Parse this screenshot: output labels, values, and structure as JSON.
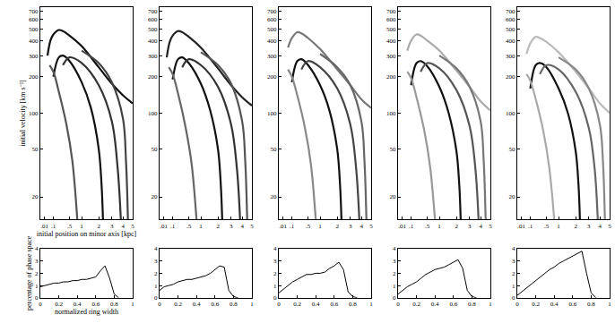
{
  "chart_data": [
    {
      "type": "line",
      "log": "y",
      "xlabel": "initial position on minor axis [kpc]",
      "ylabel": "initial velocity [km s⁻¹]",
      "xlim": [
        0,
        5
      ],
      "xticks": [
        {
          "value": 0.01,
          "label": ".01"
        },
        {
          "value": 0.1,
          "label": ".1"
        },
        {
          "value": 0.5,
          "label": ".5"
        },
        1,
        2,
        3,
        4,
        5
      ],
      "ylim": [
        13,
        760
      ],
      "yticks": [
        20,
        50,
        100,
        200,
        300,
        400,
        500,
        600,
        700
      ],
      "series": [
        {
          "color": "#111111",
          "x": [
            0.03,
            0.06,
            0.1,
            0.2,
            0.3,
            0.5,
            1,
            2,
            3,
            4,
            5
          ],
          "values": [
            300,
            400,
            450,
            490,
            480,
            440,
            360,
            240,
            175,
            140,
            120
          ]
        },
        {
          "color": "#111111",
          "x": [
            0.1,
            0.2,
            0.3,
            0.5,
            1,
            1.5,
            2,
            2.2,
            2.3
          ],
          "values": [
            200,
            290,
            300,
            270,
            180,
            110,
            50,
            25,
            13
          ]
        },
        {
          "color": "#333333",
          "x": [
            0.3,
            0.5,
            1,
            2,
            3,
            3.5,
            3.8
          ],
          "values": [
            250,
            290,
            260,
            170,
            85,
            35,
            13
          ]
        },
        {
          "color": "#555555",
          "x": [
            0.05,
            0.1,
            0.2,
            0.4,
            0.6,
            0.8
          ],
          "values": [
            250,
            220,
            150,
            80,
            40,
            13
          ]
        },
        {
          "color": "#444444",
          "x": [
            1,
            2,
            3,
            4,
            4.3,
            4.5
          ],
          "values": [
            330,
            260,
            180,
            90,
            40,
            13
          ]
        }
      ]
    },
    {
      "type": "line",
      "log": "y",
      "xlim": [
        0,
        5
      ],
      "xticks": [
        {
          "value": 0.01,
          "label": ".01"
        },
        {
          "value": 0.1,
          "label": ".1"
        },
        {
          "value": 0.5,
          "label": ".5"
        },
        1,
        2,
        3,
        4,
        5
      ],
      "ylim": [
        13,
        760
      ],
      "yticks": [
        20,
        50,
        100,
        200,
        300,
        400,
        500,
        600,
        700
      ],
      "series": [
        {
          "color": "#222222",
          "x": [
            0.03,
            0.06,
            0.1,
            0.2,
            0.3,
            0.5,
            1,
            2,
            3,
            4,
            5
          ],
          "values": [
            290,
            390,
            440,
            480,
            470,
            430,
            350,
            235,
            170,
            135,
            115
          ]
        },
        {
          "color": "#111111",
          "x": [
            0.1,
            0.2,
            0.3,
            0.5,
            1,
            1.5,
            2,
            2.2,
            2.3
          ],
          "values": [
            190,
            280,
            290,
            260,
            175,
            105,
            50,
            25,
            13
          ]
        },
        {
          "color": "#333333",
          "x": [
            0.3,
            0.5,
            1,
            2,
            3,
            3.5,
            3.8
          ],
          "values": [
            240,
            280,
            250,
            165,
            80,
            35,
            13
          ]
        },
        {
          "color": "#666666",
          "x": [
            0.05,
            0.1,
            0.2,
            0.4,
            0.6,
            0.8
          ],
          "values": [
            240,
            210,
            145,
            75,
            38,
            13
          ]
        },
        {
          "color": "#555555",
          "x": [
            1,
            2,
            3,
            4,
            4.3,
            4.5
          ],
          "values": [
            320,
            250,
            175,
            85,
            40,
            13
          ]
        }
      ]
    },
    {
      "type": "line",
      "log": "y",
      "xlim": [
        0,
        5
      ],
      "xticks": [
        {
          "value": 0.01,
          "label": ".01"
        },
        {
          "value": 0.1,
          "label": ".1"
        },
        {
          "value": 0.5,
          "label": ".5"
        },
        1,
        2,
        3,
        4,
        5
      ],
      "ylim": [
        13,
        760
      ],
      "yticks": [
        20,
        50,
        100,
        200,
        300,
        400,
        500,
        600,
        700
      ],
      "series": [
        {
          "color": "#777777",
          "x": [
            0.05,
            0.1,
            0.2,
            0.3,
            0.5,
            1,
            2,
            3,
            4,
            5
          ],
          "values": [
            350,
            420,
            470,
            460,
            420,
            340,
            230,
            170,
            130,
            110
          ]
        },
        {
          "color": "#111111",
          "x": [
            0.1,
            0.2,
            0.3,
            0.5,
            1,
            1.5,
            2,
            2.2,
            2.3
          ],
          "values": [
            180,
            270,
            280,
            250,
            170,
            105,
            50,
            25,
            13
          ]
        },
        {
          "color": "#444444",
          "x": [
            0.3,
            0.5,
            1,
            2,
            3,
            3.5,
            3.8
          ],
          "values": [
            230,
            270,
            240,
            160,
            80,
            35,
            13
          ]
        },
        {
          "color": "#888888",
          "x": [
            0.05,
            0.1,
            0.2,
            0.4,
            0.6,
            0.8
          ],
          "values": [
            230,
            200,
            140,
            75,
            38,
            13
          ]
        },
        {
          "color": "#666666",
          "x": [
            1,
            2,
            3,
            4,
            4.3,
            4.5
          ],
          "values": [
            310,
            240,
            170,
            85,
            40,
            13
          ]
        }
      ]
    },
    {
      "type": "line",
      "log": "y",
      "xlim": [
        0,
        5
      ],
      "xticks": [
        {
          "value": 0.01,
          "label": ".01"
        },
        {
          "value": 0.1,
          "label": ".1"
        },
        {
          "value": 0.5,
          "label": ".5"
        },
        1,
        2,
        3,
        4,
        5
      ],
      "ylim": [
        13,
        760
      ],
      "yticks": [
        20,
        50,
        100,
        200,
        300,
        400,
        500,
        600,
        700
      ],
      "series": [
        {
          "color": "#aaaaaa",
          "x": [
            0.05,
            0.1,
            0.2,
            0.3,
            0.5,
            1,
            2,
            3,
            4,
            5
          ],
          "values": [
            330,
            400,
            450,
            440,
            400,
            330,
            225,
            165,
            125,
            105
          ]
        },
        {
          "color": "#111111",
          "x": [
            0.1,
            0.2,
            0.3,
            0.5,
            1,
            1.5,
            2,
            2.2,
            2.3
          ],
          "values": [
            170,
            260,
            270,
            245,
            165,
            100,
            48,
            25,
            13
          ]
        },
        {
          "color": "#555555",
          "x": [
            0.3,
            0.5,
            1,
            2,
            3,
            3.5,
            3.8
          ],
          "values": [
            220,
            260,
            235,
            155,
            78,
            35,
            13
          ]
        },
        {
          "color": "#999999",
          "x": [
            0.05,
            0.1,
            0.2,
            0.4,
            0.6,
            0.8
          ],
          "values": [
            220,
            195,
            135,
            72,
            36,
            13
          ]
        },
        {
          "color": "#777777",
          "x": [
            1,
            2,
            3,
            4,
            4.3,
            4.5
          ],
          "values": [
            300,
            235,
            165,
            85,
            40,
            13
          ]
        }
      ]
    },
    {
      "type": "line",
      "log": "y",
      "xlim": [
        0,
        5
      ],
      "xticks": [
        {
          "value": 0.01,
          "label": ".01"
        },
        {
          "value": 0.1,
          "label": ".1"
        },
        {
          "value": 0.5,
          "label": ".5"
        },
        1,
        2,
        3,
        4,
        5
      ],
      "ylim": [
        13,
        760
      ],
      "yticks": [
        20,
        50,
        100,
        200,
        300,
        400,
        500,
        600,
        700
      ],
      "series": [
        {
          "color": "#bbbbbb",
          "x": [
            0.05,
            0.1,
            0.2,
            0.3,
            0.5,
            1,
            2,
            3,
            4,
            5
          ],
          "values": [
            310,
            380,
            430,
            420,
            390,
            320,
            220,
            160,
            120,
            100
          ]
        },
        {
          "color": "#111111",
          "x": [
            0.1,
            0.2,
            0.3,
            0.5,
            1,
            1.5,
            2,
            2.2,
            2.3
          ],
          "values": [
            160,
            250,
            260,
            240,
            160,
            100,
            48,
            25,
            13
          ]
        },
        {
          "color": "#666666",
          "x": [
            0.3,
            0.5,
            1,
            2,
            3,
            3.5,
            3.8
          ],
          "values": [
            210,
            250,
            230,
            150,
            75,
            35,
            13
          ]
        },
        {
          "color": "#aaaaaa",
          "x": [
            0.05,
            0.1,
            0.2,
            0.4,
            0.6,
            0.8
          ],
          "values": [
            210,
            185,
            130,
            70,
            35,
            13
          ]
        },
        {
          "color": "#888888",
          "x": [
            1,
            2,
            3,
            4,
            4.3,
            4.5
          ],
          "values": [
            290,
            230,
            160,
            80,
            40,
            13
          ]
        }
      ]
    },
    {
      "type": "line",
      "xlabel": "normalized ring width",
      "ylabel": "percentage of phase space",
      "xlim": [
        0,
        1
      ],
      "xticks": [
        0,
        0.2,
        0.4,
        0.6,
        0.8,
        1
      ],
      "ylim": [
        0,
        4
      ],
      "yticks": [
        0,
        1,
        2,
        3,
        4
      ],
      "color": "#000000",
      "x": [
        0,
        0.05,
        0.1,
        0.15,
        0.2,
        0.25,
        0.3,
        0.35,
        0.4,
        0.45,
        0.5,
        0.55,
        0.6,
        0.65,
        0.7,
        0.75,
        0.8,
        0.85
      ],
      "values": [
        0.9,
        1.0,
        1.1,
        1.2,
        1.2,
        1.3,
        1.3,
        1.4,
        1.4,
        1.5,
        1.5,
        1.6,
        1.7,
        2.2,
        2.6,
        1.6,
        0.3,
        0
      ]
    },
    {
      "type": "line",
      "xlim": [
        0,
        1
      ],
      "xticks": [
        0,
        0.2,
        0.4,
        0.6,
        0.8,
        1
      ],
      "ylim": [
        0,
        4
      ],
      "yticks": [
        0,
        1,
        2,
        3,
        4
      ],
      "color": "#000000",
      "x": [
        0,
        0.05,
        0.1,
        0.15,
        0.2,
        0.25,
        0.3,
        0.35,
        0.4,
        0.45,
        0.5,
        0.55,
        0.6,
        0.65,
        0.7,
        0.75,
        0.8,
        0.85
      ],
      "values": [
        0.6,
        0.9,
        1.0,
        1.1,
        1.3,
        1.4,
        1.5,
        1.5,
        1.6,
        1.7,
        1.8,
        2.0,
        2.3,
        2.6,
        2.5,
        0.6,
        0.1,
        0
      ]
    },
    {
      "type": "line",
      "xlim": [
        0,
        1
      ],
      "xticks": [
        0,
        0.2,
        0.4,
        0.6,
        0.8,
        1
      ],
      "ylim": [
        0,
        4
      ],
      "yticks": [
        0,
        1,
        2,
        3,
        4
      ],
      "color": "#000000",
      "x": [
        0,
        0.05,
        0.1,
        0.15,
        0.2,
        0.25,
        0.3,
        0.35,
        0.4,
        0.45,
        0.5,
        0.55,
        0.6,
        0.65,
        0.7,
        0.75,
        0.8,
        0.85
      ],
      "values": [
        0.4,
        0.7,
        1.0,
        1.3,
        1.5,
        1.7,
        1.9,
        1.9,
        2.0,
        2.0,
        2.1,
        2.4,
        2.6,
        2.9,
        2.3,
        0.5,
        0.1,
        0
      ]
    },
    {
      "type": "line",
      "xlim": [
        0,
        1
      ],
      "xticks": [
        0,
        0.2,
        0.4,
        0.6,
        0.8,
        1
      ],
      "ylim": [
        0,
        4
      ],
      "yticks": [
        0,
        1,
        2,
        3,
        4
      ],
      "color": "#000000",
      "x": [
        0,
        0.05,
        0.1,
        0.15,
        0.2,
        0.25,
        0.3,
        0.35,
        0.4,
        0.45,
        0.5,
        0.55,
        0.6,
        0.65,
        0.7,
        0.75,
        0.8,
        0.85
      ],
      "values": [
        0.3,
        0.6,
        0.9,
        1.1,
        1.3,
        1.6,
        1.9,
        2.1,
        2.3,
        2.4,
        2.5,
        2.7,
        2.9,
        3.1,
        2.4,
        0.6,
        0.1,
        0
      ]
    },
    {
      "type": "line",
      "xlim": [
        0,
        1
      ],
      "xticks": [
        0,
        0.2,
        0.4,
        0.6,
        0.8,
        1
      ],
      "ylim": [
        0,
        4
      ],
      "yticks": [
        0,
        1,
        2,
        3,
        4
      ],
      "color": "#000000",
      "x": [
        0,
        0.05,
        0.1,
        0.15,
        0.2,
        0.25,
        0.3,
        0.35,
        0.4,
        0.45,
        0.5,
        0.55,
        0.6,
        0.65,
        0.7,
        0.75,
        0.8,
        0.85
      ],
      "values": [
        0.2,
        0.5,
        0.8,
        1.1,
        1.4,
        1.7,
        2.0,
        2.3,
        2.5,
        2.8,
        3.0,
        3.2,
        3.4,
        3.6,
        3.8,
        2.0,
        0.4,
        0
      ]
    }
  ]
}
